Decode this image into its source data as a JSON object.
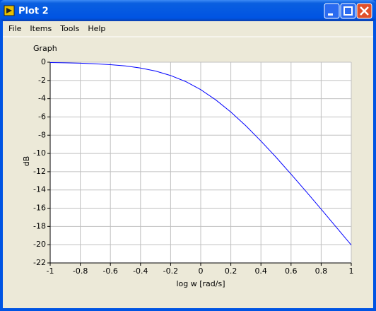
{
  "window": {
    "title": "Plot 2",
    "menu": [
      "File",
      "Items",
      "Tools",
      "Help"
    ]
  },
  "chart_data": {
    "type": "line",
    "title": "Graph",
    "x_label": "log w [rad/s]",
    "y_label": "dB",
    "x": [
      -1,
      -0.9,
      -0.8,
      -0.7,
      -0.6,
      -0.5,
      -0.4,
      -0.3,
      -0.2,
      -0.1,
      0,
      0.1,
      0.2,
      0.3,
      0.4,
      0.5,
      0.6,
      0.7,
      0.8,
      0.9,
      1
    ],
    "series": [
      {
        "color": "#0000ff",
        "values": [
          -0.04,
          -0.07,
          -0.11,
          -0.17,
          -0.27,
          -0.41,
          -0.64,
          -0.97,
          -1.46,
          -2.12,
          -3.01,
          -4.13,
          -5.46,
          -6.97,
          -8.64,
          -10.41,
          -12.27,
          -14.17,
          -16.11,
          -18.07,
          -20.04
        ]
      }
    ],
    "xlim": [
      -1,
      1
    ],
    "xticks": [
      -1,
      -0.8,
      -0.6,
      -0.4,
      -0.2,
      0,
      0.2,
      0.4,
      0.6,
      0.8,
      1
    ],
    "ylim": [
      -22,
      0
    ],
    "yticks": [
      0,
      -2,
      -4,
      -6,
      -8,
      -10,
      -12,
      -14,
      -16,
      -18,
      -20,
      -22
    ],
    "grid": true
  }
}
